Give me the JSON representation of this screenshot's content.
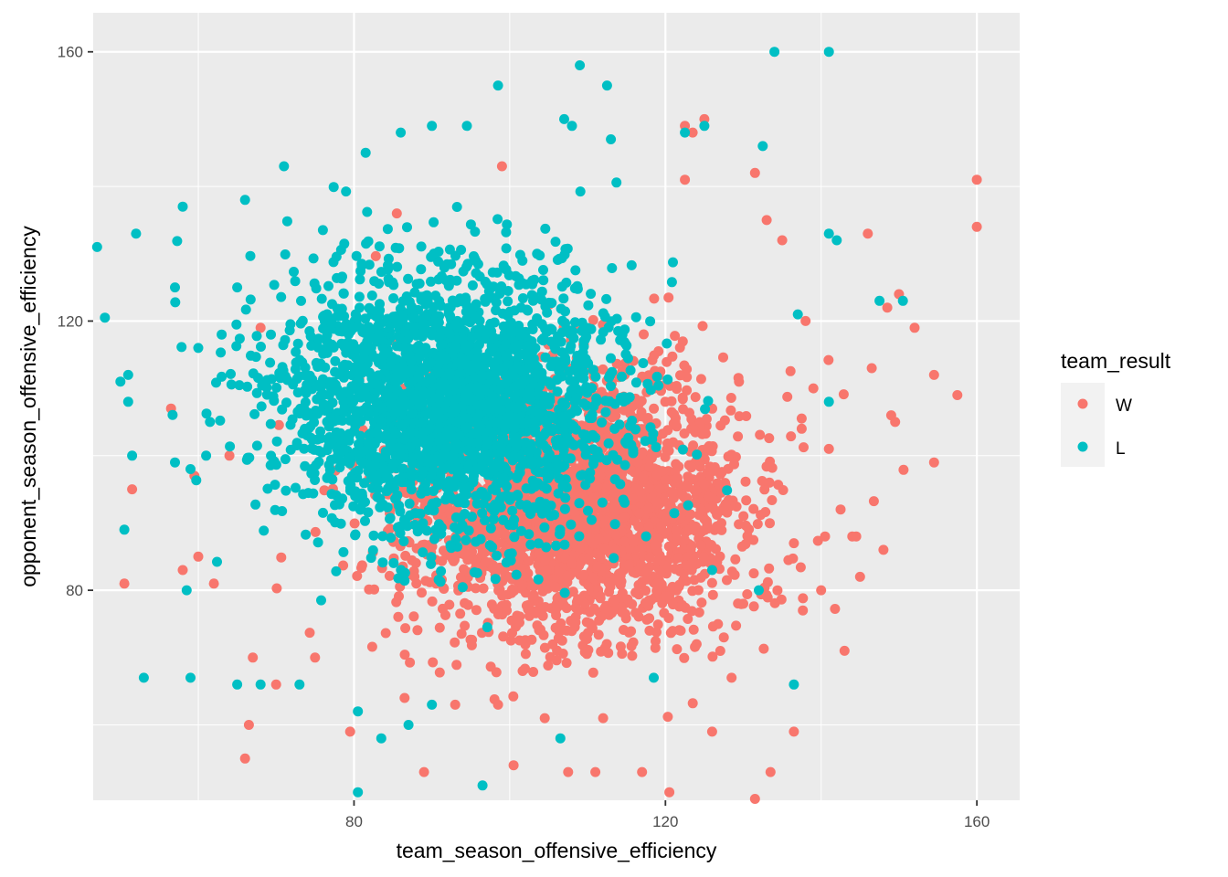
{
  "chart_data": {
    "type": "scatter",
    "xlabel": "team_season_offensive_efficiency",
    "ylabel": "opponent_season_offensive_efficiency",
    "xlim": [
      46.5,
      165.5
    ],
    "ylim": [
      48.8,
      165.8
    ],
    "x_ticks": [
      80,
      120,
      160
    ],
    "x_tick_labels": [
      "80",
      "120",
      "160"
    ],
    "x_minor_ticks": [
      60,
      100,
      140
    ],
    "y_ticks": [
      80,
      120,
      160
    ],
    "y_tick_labels": [
      "80",
      "120",
      "160"
    ],
    "y_minor_ticks": [
      60,
      100,
      140
    ],
    "grid": true,
    "legend": {
      "title": "team_result",
      "placement": "right",
      "entries": [
        {
          "label": "W",
          "color": "#F8766D"
        },
        {
          "label": "L",
          "color": "#00BFC4"
        }
      ]
    },
    "series": [
      {
        "name": "W",
        "color": "#F8766D",
        "cluster": {
          "center_x": 108,
          "center_y": 92,
          "sd_x": 13,
          "sd_y": 13,
          "count": 2500
        },
        "points": [
          [
            160,
            141
          ],
          [
            160,
            134
          ],
          [
            157.5,
            109
          ],
          [
            154.5,
            99
          ],
          [
            154.5,
            112
          ],
          [
            152,
            119
          ],
          [
            150,
            124
          ],
          [
            149.5,
            105
          ],
          [
            149,
            106
          ],
          [
            148.5,
            122
          ],
          [
            148,
            86
          ],
          [
            146.5,
            113
          ],
          [
            146,
            133
          ],
          [
            145,
            82
          ],
          [
            144.5,
            88
          ],
          [
            144,
            88
          ],
          [
            143,
            71
          ],
          [
            142.5,
            92
          ],
          [
            141,
            101
          ],
          [
            140.5,
            88
          ],
          [
            140,
            80
          ],
          [
            136.5,
            59
          ],
          [
            136.5,
            87
          ],
          [
            133.5,
            53
          ],
          [
            131.5,
            49
          ],
          [
            128.5,
            67
          ],
          [
            127.5,
            73
          ],
          [
            126,
            59
          ],
          [
            125,
            150
          ],
          [
            123.5,
            148
          ],
          [
            122.5,
            141
          ],
          [
            120.5,
            50
          ],
          [
            117,
            53
          ],
          [
            111,
            53
          ],
          [
            107.5,
            53
          ],
          [
            100.5,
            54
          ],
          [
            89,
            53
          ],
          [
            79.5,
            59
          ],
          [
            66.5,
            60
          ],
          [
            66,
            55
          ],
          [
            51.5,
            95
          ],
          [
            50.5,
            81
          ],
          [
            58,
            83
          ],
          [
            59.5,
            97
          ],
          [
            60,
            85
          ],
          [
            62,
            81
          ],
          [
            56.5,
            107
          ],
          [
            64,
            100
          ],
          [
            68,
            119
          ],
          [
            85.5,
            136
          ],
          [
            99,
            143
          ],
          [
            122.5,
            149
          ],
          [
            131.5,
            142
          ],
          [
            133,
            135
          ],
          [
            135,
            132
          ],
          [
            138,
            120
          ],
          [
            139,
            110
          ],
          [
            137.5,
            104
          ],
          [
            130,
            78
          ],
          [
            124,
            72
          ],
          [
            112,
            61
          ],
          [
            104.5,
            61
          ],
          [
            98.5,
            63
          ],
          [
            93,
            63
          ],
          [
            86.5,
            64
          ],
          [
            75,
            70
          ],
          [
            70,
            66
          ],
          [
            67,
            70
          ]
        ]
      },
      {
        "name": "L",
        "color": "#00BFC4",
        "cluster": {
          "center_x": 92,
          "center_y": 108,
          "sd_x": 13,
          "sd_y": 13,
          "count": 2500
        },
        "points": [
          [
            134,
            160
          ],
          [
            141,
            160
          ],
          [
            109,
            158
          ],
          [
            98.5,
            155
          ],
          [
            112.5,
            155
          ],
          [
            122.5,
            148
          ],
          [
            125,
            149
          ],
          [
            107,
            150
          ],
          [
            90,
            149
          ],
          [
            94.5,
            149
          ],
          [
            86,
            148
          ],
          [
            132.5,
            146
          ],
          [
            113,
            147
          ],
          [
            81.5,
            145
          ],
          [
            71,
            143
          ],
          [
            108,
            149
          ],
          [
            47,
            131
          ],
          [
            48,
            120.5
          ],
          [
            52,
            133
          ],
          [
            50,
            111
          ],
          [
            51,
            108
          ],
          [
            51,
            112
          ],
          [
            51.5,
            100
          ],
          [
            50.5,
            89
          ],
          [
            53,
            67
          ],
          [
            57,
            125
          ],
          [
            58,
            137
          ],
          [
            58.5,
            80
          ],
          [
            59,
            67
          ],
          [
            60,
            116
          ],
          [
            61,
            100
          ],
          [
            142,
            132
          ],
          [
            141,
            133
          ],
          [
            147.5,
            123
          ],
          [
            150.5,
            123
          ],
          [
            141,
            108
          ],
          [
            137,
            121
          ],
          [
            132,
            80
          ],
          [
            136.5,
            66
          ],
          [
            126,
            83
          ],
          [
            118.5,
            67
          ],
          [
            106.5,
            58
          ],
          [
            96.5,
            51
          ],
          [
            80.5,
            50
          ],
          [
            80.5,
            62
          ],
          [
            83.5,
            58
          ],
          [
            87,
            60
          ],
          [
            90,
            63
          ],
          [
            65,
            66
          ],
          [
            68,
            66
          ],
          [
            73,
            66
          ],
          [
            63,
            118
          ],
          [
            65,
            125
          ],
          [
            66,
            138
          ],
          [
            59,
            98
          ],
          [
            61.5,
            105
          ],
          [
            57,
            99
          ]
        ]
      }
    ]
  }
}
